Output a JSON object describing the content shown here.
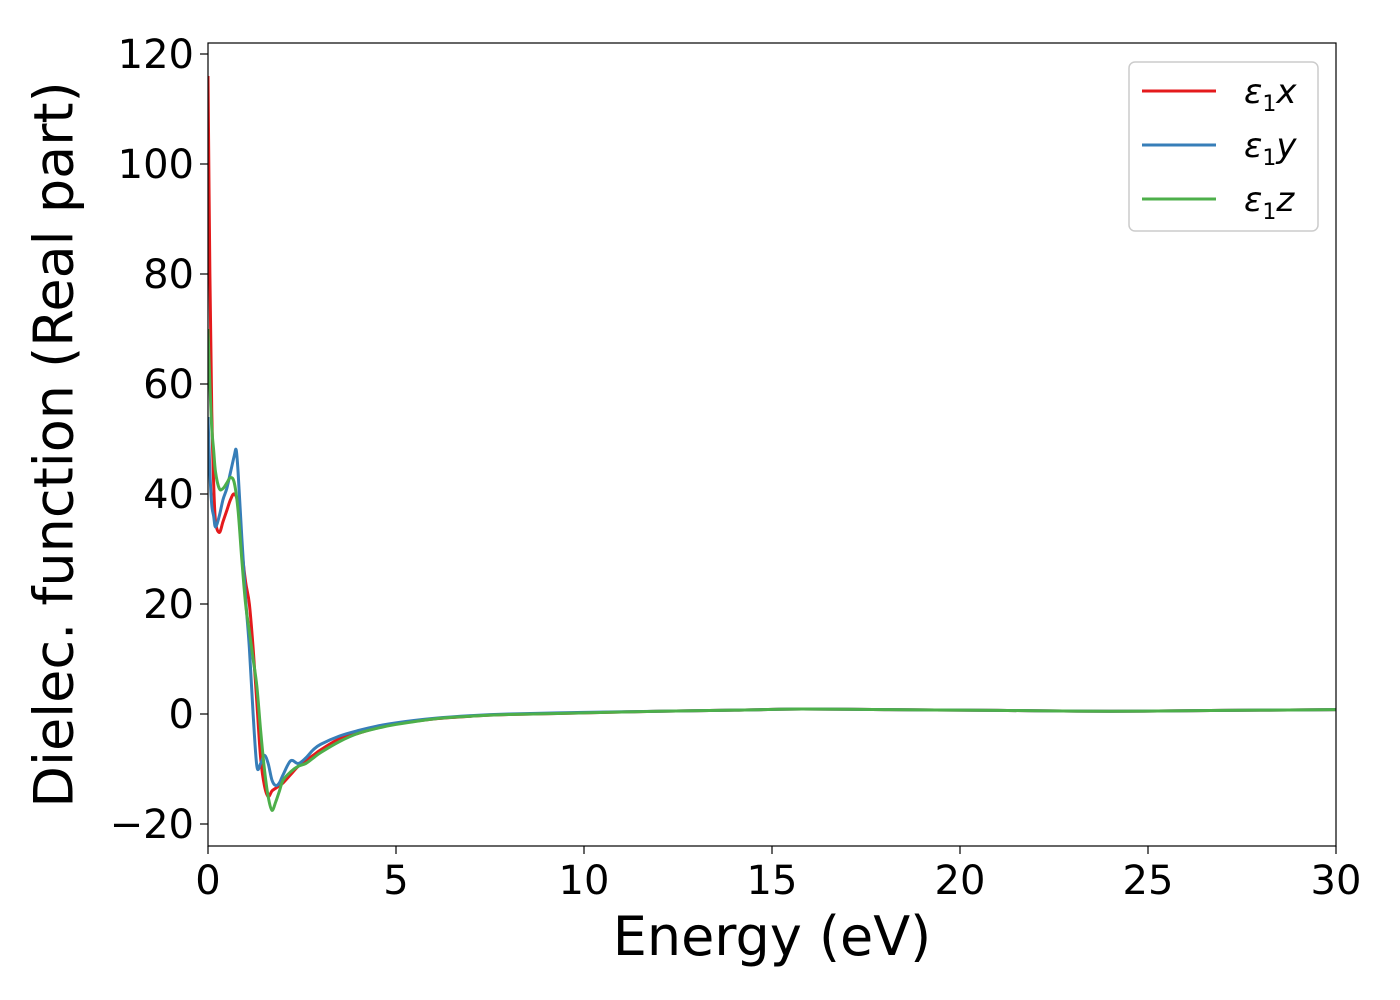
{
  "chart_data": {
    "type": "line",
    "xlabel": "Energy (eV)",
    "ylabel": "Dielec. function (Real part)",
    "xlim": [
      0,
      30
    ],
    "ylim": [
      -24,
      122
    ],
    "xticks": [
      0,
      5,
      10,
      15,
      20,
      25,
      30
    ],
    "xtick_labels": [
      "0",
      "5",
      "10",
      "15",
      "20",
      "25",
      "30"
    ],
    "yticks": [
      -20,
      0,
      20,
      40,
      60,
      80,
      100,
      120
    ],
    "ytick_labels": [
      "−20",
      "0",
      "20",
      "40",
      "60",
      "80",
      "100",
      "120"
    ],
    "grid": false,
    "legend_position": "top-right",
    "series": [
      {
        "name": "ε₁x",
        "legend_main": "ε",
        "legend_sub": "1",
        "legend_var": "x",
        "color": "#e41a1c",
        "x": [
          0,
          0.05,
          0.1,
          0.15,
          0.2,
          0.3,
          0.4,
          0.5,
          0.6,
          0.7,
          0.8,
          0.9,
          1.0,
          1.1,
          1.2,
          1.3,
          1.4,
          1.5,
          1.6,
          1.7,
          1.8,
          1.9,
          2.0,
          2.2,
          2.4,
          2.6,
          2.8,
          3.0,
          3.5,
          4.0,
          4.5,
          5.0,
          6.0,
          7.0,
          8.0,
          10.0,
          12.0,
          14.0,
          15.8,
          18.0,
          20.0,
          22.0,
          24.0,
          26.0,
          28.0,
          30.0
        ],
        "y": [
          116,
          80,
          55,
          42,
          35,
          33,
          35,
          37,
          39,
          40,
          38,
          30,
          24,
          20,
          12,
          2,
          -8,
          -13,
          -15,
          -14,
          -13.5,
          -13,
          -12.5,
          -11,
          -9.5,
          -8.5,
          -7.5,
          -6.5,
          -4.5,
          -3.5,
          -2.5,
          -1.8,
          -0.9,
          -0.4,
          -0.1,
          0.2,
          0.5,
          0.7,
          0.9,
          0.8,
          0.7,
          0.6,
          0.5,
          0.6,
          0.7,
          0.8
        ]
      },
      {
        "name": "ε₁y",
        "legend_main": "ε",
        "legend_sub": "1",
        "legend_var": "y",
        "color": "#377eb8",
        "x": [
          0,
          0.05,
          0.1,
          0.15,
          0.2,
          0.3,
          0.4,
          0.5,
          0.6,
          0.7,
          0.75,
          0.8,
          0.9,
          1.0,
          1.1,
          1.2,
          1.3,
          1.4,
          1.5,
          1.6,
          1.7,
          1.8,
          1.9,
          2.0,
          2.2,
          2.4,
          2.6,
          2.8,
          3.0,
          3.5,
          4.0,
          4.5,
          5.0,
          6.0,
          7.0,
          8.0,
          10.0,
          12.0,
          14.0,
          15.8,
          18.0,
          20.0,
          22.0,
          24.0,
          26.0,
          28.0,
          30.0
        ],
        "y": [
          54,
          44,
          38,
          36,
          34,
          36,
          39,
          41,
          44,
          47,
          48,
          44,
          32,
          21,
          12,
          0,
          -9.5,
          -9,
          -7.5,
          -9,
          -12,
          -13,
          -12.5,
          -11,
          -8.5,
          -9,
          -8,
          -6.5,
          -5.5,
          -4,
          -3,
          -2.2,
          -1.6,
          -0.8,
          -0.3,
          0.0,
          0.3,
          0.5,
          0.7,
          0.9,
          0.8,
          0.7,
          0.6,
          0.5,
          0.6,
          0.7,
          0.8
        ]
      },
      {
        "name": "ε₁z",
        "legend_main": "ε",
        "legend_sub": "1",
        "legend_var": "z",
        "color": "#4daf4a",
        "x": [
          0,
          0.05,
          0.1,
          0.15,
          0.2,
          0.3,
          0.4,
          0.5,
          0.6,
          0.7,
          0.8,
          0.9,
          1.0,
          1.1,
          1.2,
          1.3,
          1.4,
          1.5,
          1.6,
          1.7,
          1.8,
          1.9,
          2.0,
          2.2,
          2.4,
          2.6,
          2.8,
          3.0,
          3.5,
          4.0,
          4.5,
          5.0,
          6.0,
          7.0,
          8.0,
          10.0,
          12.0,
          14.0,
          15.8,
          18.0,
          20.0,
          22.0,
          24.0,
          26.0,
          28.0,
          30.0
        ],
        "y": [
          70,
          60,
          52,
          48,
          44,
          41,
          41,
          42,
          43,
          42,
          37,
          28,
          20,
          15,
          10,
          5,
          -3,
          -10,
          -15,
          -17.5,
          -16,
          -14,
          -12,
          -10.5,
          -9.5,
          -9,
          -8,
          -7,
          -5,
          -3.5,
          -2.6,
          -1.9,
          -0.9,
          -0.4,
          -0.1,
          0.2,
          0.5,
          0.7,
          0.9,
          0.8,
          0.7,
          0.6,
          0.5,
          0.6,
          0.7,
          0.8
        ]
      }
    ]
  }
}
